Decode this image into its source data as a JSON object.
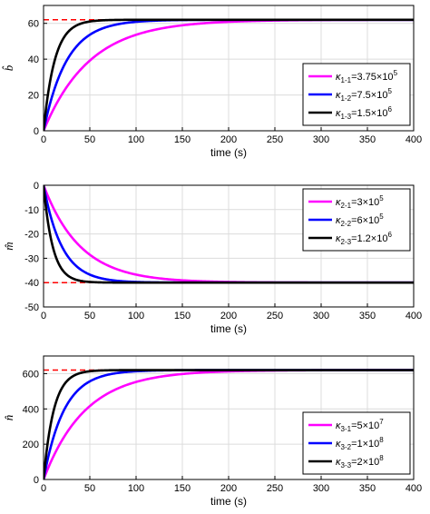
{
  "chart_data": [
    {
      "type": "line",
      "ylabel": "b̂",
      "xlabel": "time (s)",
      "xlim": [
        0,
        400
      ],
      "ylim": [
        0,
        70
      ],
      "xticks": [
        "0",
        "50",
        "100",
        "150",
        "200",
        "250",
        "300",
        "350",
        "400"
      ],
      "yticks": [
        "0",
        "20",
        "40",
        "60"
      ],
      "grid": true,
      "legend_position": "lower-right",
      "reference": {
        "value": 62,
        "style": "dashed",
        "color": "#ff0000"
      },
      "series": [
        {
          "name": "κ1-1=3.75×10^5",
          "color": "#ff00ff",
          "start": 0,
          "final": 62,
          "time_constant": 50,
          "legend": {
            "sym": "κ",
            "sub": "1-1",
            "val": "=3.75×10",
            "sup": "5"
          }
        },
        {
          "name": "κ1-2=7.5×10^5",
          "color": "#0000ff",
          "start": 0,
          "final": 62,
          "time_constant": 25,
          "legend": {
            "sym": "κ",
            "sub": "1-2",
            "val": "=7.5×10",
            "sup": "5"
          }
        },
        {
          "name": "κ1-3=1.5×10^6",
          "color": "#000000",
          "start": 0,
          "final": 62,
          "time_constant": 12,
          "legend": {
            "sym": "κ",
            "sub": "1-3",
            "val": "=1.5×10",
            "sup": "6"
          }
        }
      ]
    },
    {
      "type": "line",
      "ylabel": "m̂",
      "xlabel": "time (s)",
      "xlim": [
        0,
        400
      ],
      "ylim": [
        -50,
        0
      ],
      "xticks": [
        "0",
        "50",
        "100",
        "150",
        "200",
        "250",
        "300",
        "350",
        "400"
      ],
      "yticks": [
        "0",
        "-10",
        "-20",
        "-30",
        "-40",
        "-50"
      ],
      "grid": true,
      "legend_position": "top-right",
      "reference": {
        "value": -40,
        "style": "dashed",
        "color": "#ff0000"
      },
      "series": [
        {
          "name": "κ2-1=3×10^5",
          "color": "#ff00ff",
          "start": 0,
          "final": -40,
          "time_constant": 40,
          "legend": {
            "sym": "κ",
            "sub": "2-1",
            "val": "=3×10",
            "sup": "5"
          }
        },
        {
          "name": "κ2-2=6×10^5",
          "color": "#0000ff",
          "start": 0,
          "final": -40,
          "time_constant": 20,
          "legend": {
            "sym": "κ",
            "sub": "2-2",
            "val": "=6×10",
            "sup": "5"
          }
        },
        {
          "name": "κ2-3=1.2×10^6",
          "color": "#000000",
          "start": 0,
          "final": -40,
          "time_constant": 10,
          "legend": {
            "sym": "κ",
            "sub": "2-3",
            "val": "=1.2×10",
            "sup": "6"
          }
        }
      ]
    },
    {
      "type": "line",
      "ylabel": "n̂",
      "xlabel": "time (s)",
      "xlim": [
        0,
        400
      ],
      "ylim": [
        0,
        700
      ],
      "xticks": [
        "0",
        "50",
        "100",
        "150",
        "200",
        "250",
        "300",
        "350",
        "400"
      ],
      "yticks": [
        "0",
        "200",
        "400",
        "600"
      ],
      "grid": true,
      "legend_position": "lower-right",
      "reference": {
        "value": 620,
        "style": "dashed",
        "color": "#ff0000"
      },
      "series": [
        {
          "name": "κ3-1=5×10^7",
          "color": "#ff00ff",
          "start": 0,
          "final": 620,
          "time_constant": 45,
          "legend": {
            "sym": "κ",
            "sub": "3-1",
            "val": "=5×10",
            "sup": "7"
          }
        },
        {
          "name": "κ3-2=1×10^8",
          "color": "#0000ff",
          "start": 0,
          "final": 620,
          "time_constant": 22,
          "legend": {
            "sym": "κ",
            "sub": "3-2",
            "val": "=1×10",
            "sup": "8"
          }
        },
        {
          "name": "κ3-3=2×10^8",
          "color": "#000000",
          "start": 0,
          "final": 620,
          "time_constant": 11,
          "legend": {
            "sym": "κ",
            "sub": "3-3",
            "val": "=2×10",
            "sup": "8"
          }
        }
      ]
    }
  ]
}
